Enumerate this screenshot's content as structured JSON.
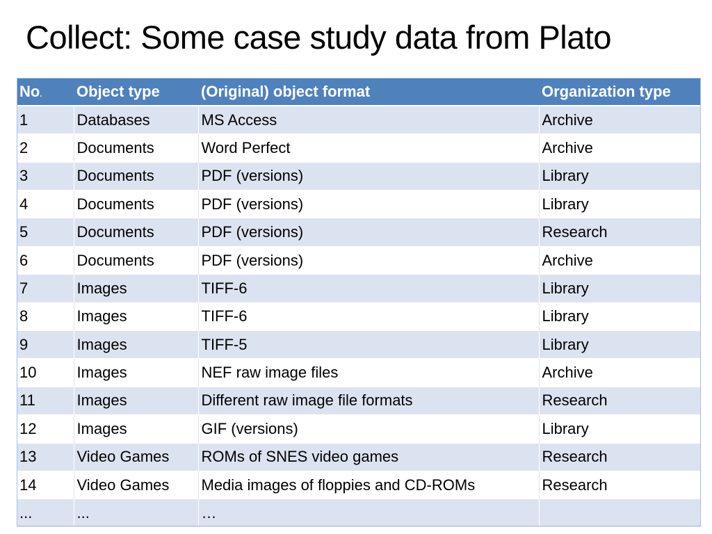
{
  "slide": {
    "title": "Collect: Some case study data from Plato"
  },
  "table": {
    "headers": {
      "no_main": "No",
      "no_suffix": ".",
      "object_type": "Object type",
      "object_format": "(Original) object format",
      "organization_type": "Organization type"
    },
    "rows": [
      {
        "no": "1",
        "object_type": "Databases",
        "object_format": "MS Access",
        "organization_type": "Archive"
      },
      {
        "no": "2",
        "object_type": "Documents",
        "object_format": "Word Perfect",
        "organization_type": "Archive"
      },
      {
        "no": "3",
        "object_type": "Documents",
        "object_format": "PDF (versions)",
        "organization_type": "Library"
      },
      {
        "no": "4",
        "object_type": "Documents",
        "object_format": "PDF (versions)",
        "organization_type": "Library"
      },
      {
        "no": "5",
        "object_type": "Documents",
        "object_format": "PDF (versions)",
        "organization_type": "Research"
      },
      {
        "no": "6",
        "object_type": "Documents",
        "object_format": "PDF (versions)",
        "organization_type": "Archive"
      },
      {
        "no": "7",
        "object_type": "Images",
        "object_format": "TIFF-6",
        "organization_type": "Library"
      },
      {
        "no": "8",
        "object_type": "Images",
        "object_format": "TIFF-6",
        "organization_type": "Library"
      },
      {
        "no": "9",
        "object_type": "Images",
        "object_format": "TIFF-5",
        "organization_type": "Library"
      },
      {
        "no": "10",
        "object_type": "Images",
        "object_format": "NEF raw image files",
        "organization_type": "Archive"
      },
      {
        "no": "11",
        "object_type": "Images",
        "object_format": "Different raw image file formats",
        "organization_type": "Research"
      },
      {
        "no": "12",
        "object_type": "Images",
        "object_format": "GIF (versions)",
        "organization_type": "Library"
      },
      {
        "no": "13",
        "object_type": "Video Games",
        "object_format": "ROMs of  SNES video games",
        "organization_type": "Research"
      },
      {
        "no": "14",
        "object_type": "Video Games",
        "object_format": "Media images of floppies and CD-ROMs",
        "organization_type": "Research"
      },
      {
        "no": "...",
        "object_type": "...",
        "object_format": "…",
        "organization_type": ""
      }
    ]
  }
}
